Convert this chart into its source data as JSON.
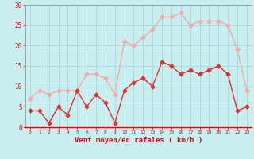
{
  "xlabel": "Vent moyen/en rafales ( km/h )",
  "hours": [
    0,
    1,
    2,
    3,
    4,
    5,
    6,
    7,
    8,
    9,
    10,
    11,
    12,
    13,
    14,
    15,
    16,
    17,
    18,
    19,
    20,
    21,
    22,
    23
  ],
  "wind_mean": [
    4,
    4,
    1,
    5,
    3,
    9,
    5,
    8,
    6,
    1,
    9,
    11,
    12,
    10,
    16,
    15,
    13,
    14,
    13,
    14,
    15,
    13,
    4,
    5
  ],
  "wind_gust": [
    7,
    9,
    8,
    9,
    9,
    9,
    13,
    13,
    12,
    8,
    21,
    20,
    22,
    24,
    27,
    27,
    28,
    25,
    26,
    26,
    26,
    25,
    19,
    9
  ],
  "mean_color": "#dd3333",
  "gust_color": "#f4aaaa",
  "bg_color": "#c8eef0",
  "grid_color": "#aad8dc",
  "ylim": [
    0,
    30
  ],
  "yticks": [
    0,
    5,
    10,
    15,
    20,
    25,
    30
  ],
  "tick_label_color": "#cc1111",
  "xlabel_color": "#cc1111",
  "marker": "D",
  "marker_size": 2.5,
  "linewidth": 1.0
}
